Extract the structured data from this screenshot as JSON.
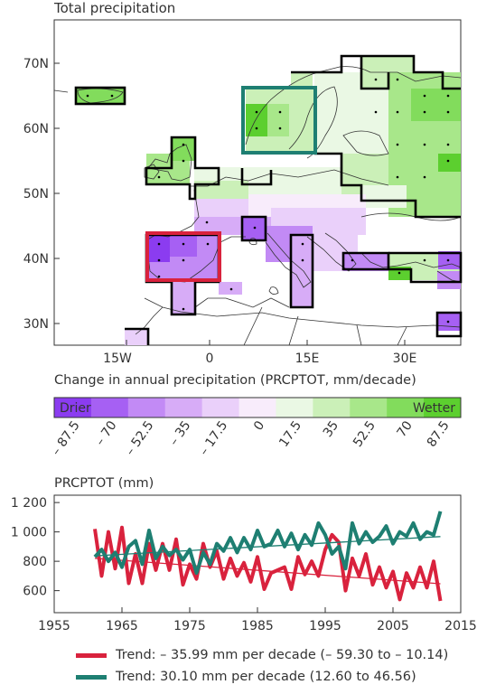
{
  "map": {
    "title": "Total precipitation",
    "lat_labels": [
      "70N",
      "60N",
      "50N",
      "40N",
      "30N"
    ],
    "lon_labels": [
      "15W",
      "0",
      "15E",
      "30E"
    ],
    "highlight_boxes": [
      {
        "name": "scandinavia",
        "color": "#1e7f72"
      },
      {
        "name": "iberia",
        "color": "#d9223d"
      }
    ]
  },
  "colorbar": {
    "title": "Change in annual precipitation (PRCPTOT, mm/decade)",
    "drier_label": "Drier",
    "wetter_label": "Wetter",
    "tick_labels": [
      "– 87.5",
      "– 70",
      "– 52.5",
      "– 35",
      "– 17.5",
      "0",
      "17.5",
      "35",
      "52.5",
      "70",
      "87.5"
    ],
    "colors": [
      "#8b3cf0",
      "#a660f3",
      "#c28af5",
      "#d7acf7",
      "#ead0fa",
      "#f8ecfb",
      "#eaf8e4",
      "#cbf0b8",
      "#a8e78a",
      "#82dc5c",
      "#5ccf2f"
    ]
  },
  "chart_data": {
    "type": "line",
    "title": "PRCPTOT (mm)",
    "xlabel": "",
    "ylabel": "",
    "xlim": [
      1955,
      2015
    ],
    "ylim": [
      450,
      1250
    ],
    "x_ticks": [
      1955,
      1965,
      1975,
      1985,
      1995,
      2005,
      2015
    ],
    "y_ticks": [
      600,
      800,
      1000,
      1200
    ],
    "y_tick_labels": [
      "600",
      "800",
      "1 000",
      "1 200"
    ],
    "series": [
      {
        "color": "#d9223d",
        "x": [
          1961,
          1962,
          1963,
          1964,
          1965,
          1966,
          1967,
          1968,
          1969,
          1970,
          1971,
          1972,
          1973,
          1974,
          1975,
          1976,
          1977,
          1978,
          1979,
          1980,
          1981,
          1982,
          1983,
          1984,
          1985,
          1986,
          1987,
          1988,
          1989,
          1990,
          1991,
          1992,
          1993,
          1994,
          1995,
          1996,
          1997,
          1998,
          1999,
          2000,
          2001,
          2002,
          2003,
          2004,
          2005,
          2006,
          2007,
          2008,
          2009,
          2010,
          2011,
          2012
        ],
        "values": [
          1020,
          700,
          1000,
          750,
          1030,
          650,
          850,
          650,
          920,
          740,
          920,
          740,
          950,
          640,
          780,
          680,
          920,
          760,
          870,
          680,
          820,
          700,
          790,
          660,
          830,
          610,
          720,
          740,
          760,
          610,
          830,
          710,
          800,
          700,
          880,
          980,
          930,
          600,
          820,
          700,
          850,
          640,
          760,
          620,
          730,
          540,
          720,
          620,
          760,
          620,
          800,
          530
        ],
        "trend": [
          820,
          647
        ]
      },
      {
        "color": "#1e7f72",
        "x": [
          1961,
          1962,
          1963,
          1964,
          1965,
          1966,
          1967,
          1968,
          1969,
          1970,
          1971,
          1972,
          1973,
          1974,
          1975,
          1976,
          1977,
          1978,
          1979,
          1980,
          1981,
          1982,
          1983,
          1984,
          1985,
          1986,
          1987,
          1988,
          1989,
          1990,
          1991,
          1992,
          1993,
          1994,
          1995,
          1996,
          1997,
          1998,
          1999,
          2000,
          2001,
          2002,
          2003,
          2004,
          2005,
          2006,
          2007,
          2008,
          2009,
          2010,
          2011,
          2012
        ],
        "values": [
          830,
          880,
          800,
          860,
          760,
          900,
          940,
          780,
          1010,
          820,
          900,
          840,
          880,
          810,
          880,
          720,
          860,
          780,
          920,
          870,
          960,
          860,
          960,
          880,
          1010,
          900,
          920,
          1010,
          900,
          990,
          880,
          980,
          910,
          1060,
          980,
          850,
          900,
          750,
          1060,
          920,
          1000,
          930,
          970,
          1040,
          920,
          1000,
          970,
          1060,
          950,
          1000,
          980,
          1140
        ],
        "trend": [
          837,
          968
        ]
      }
    ]
  },
  "legend": [
    {
      "label": "Trend: – 35.99 mm per decade (– 59.30 to – 10.14)",
      "color": "#d9223d"
    },
    {
      "label": "Trend: 30.10 mm per decade (12.60 to 46.56)",
      "color": "#1e7f72"
    }
  ]
}
